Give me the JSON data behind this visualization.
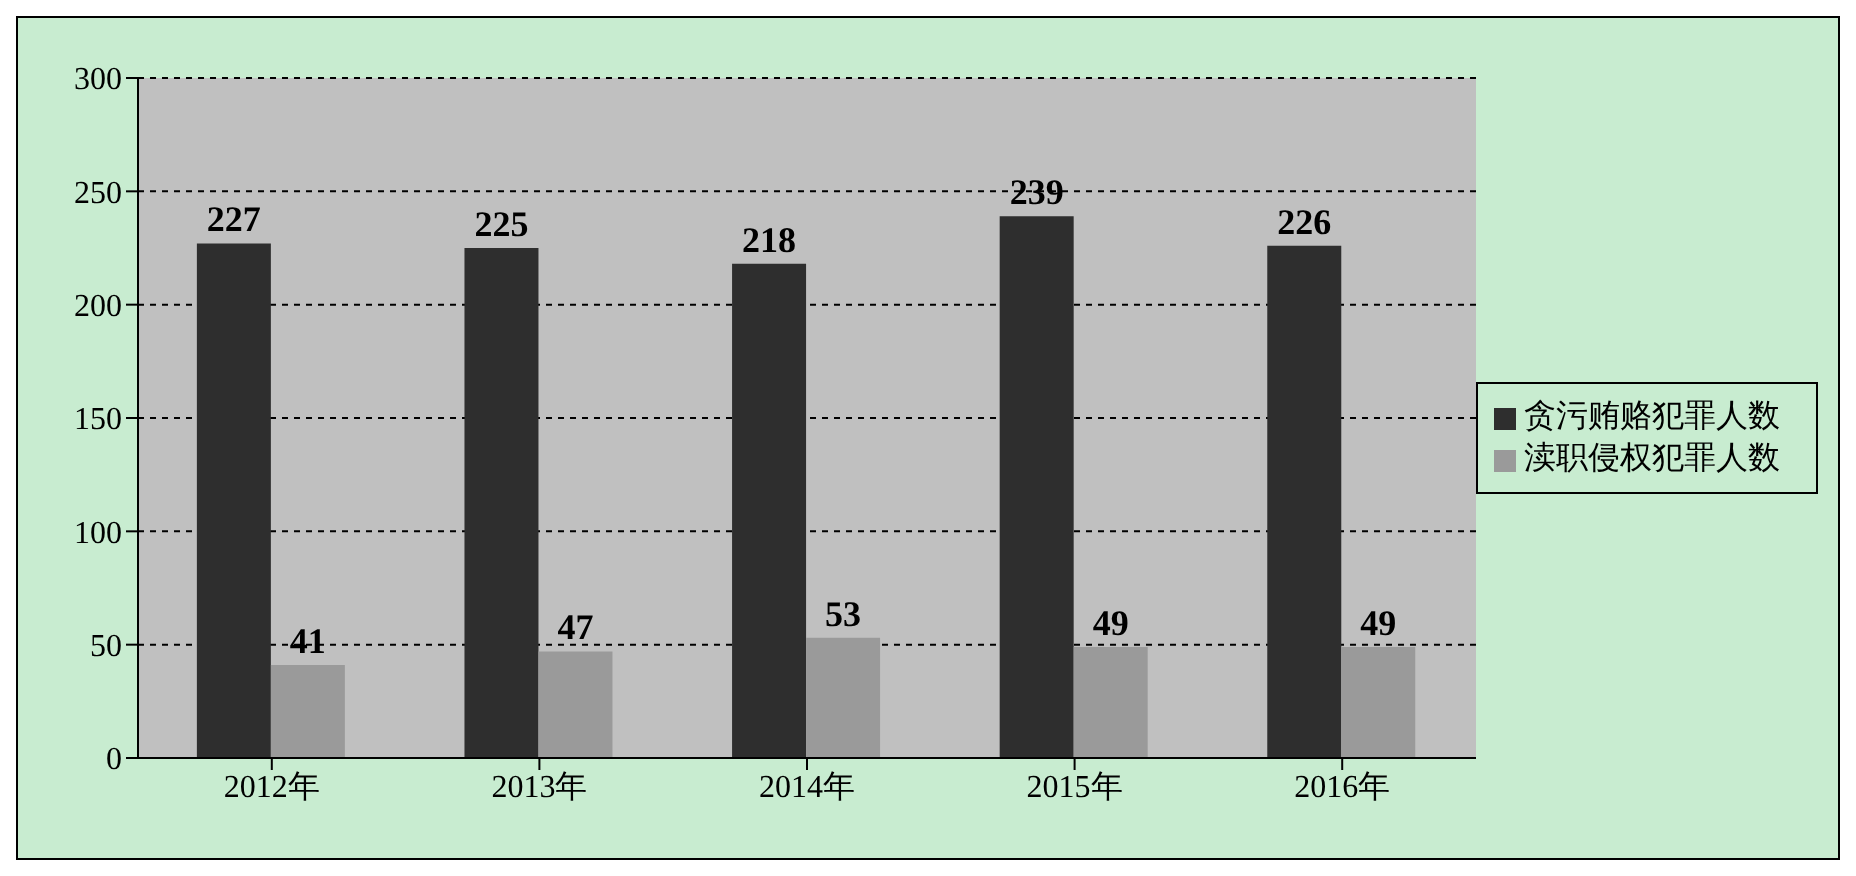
{
  "chart_data": {
    "type": "bar",
    "categories": [
      "2012年",
      "2013年",
      "2014年",
      "2015年",
      "2016年"
    ],
    "series": [
      {
        "name": "贪污贿赂犯罪人数",
        "color": "#2e2e2e",
        "values": [
          227,
          225,
          218,
          239,
          226
        ]
      },
      {
        "name": "渎职侵权犯罪人数",
        "color": "#9a9a9a",
        "values": [
          41,
          47,
          53,
          49,
          49
        ]
      }
    ],
    "ylim": [
      0,
      300
    ],
    "yticks": [
      0,
      50,
      100,
      150,
      200,
      250,
      300
    ],
    "grid": "y",
    "legend": "right",
    "data_labels": true
  }
}
